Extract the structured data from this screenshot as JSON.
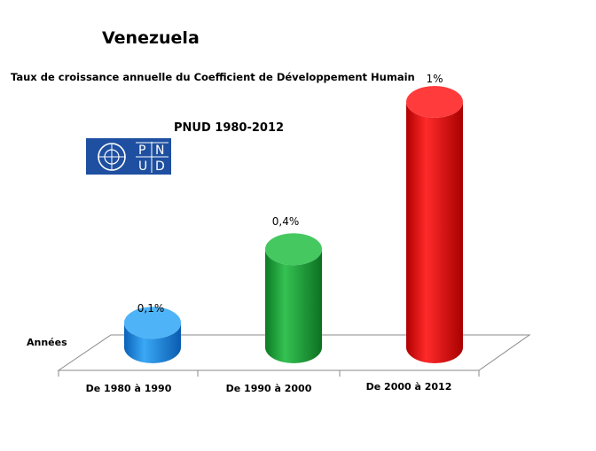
{
  "chart_data": {
    "type": "bar",
    "title": "Venezuela",
    "subtitle": "Taux de croissance annuelle du Coefficient de Développement Humain",
    "source_label": "PNUD 1980-2012",
    "xlabel": "Années",
    "ylabel": "",
    "categories": [
      "De 1980 à 1990",
      "De 1990 à 2000",
      "De 2000 à 2012"
    ],
    "values": [
      0.1,
      0.4,
      1.0
    ],
    "value_labels": [
      "0,1%",
      "0,4%",
      "1%"
    ],
    "unit": "%",
    "ylim": [
      0,
      1.0
    ],
    "grid": false,
    "legend": "none",
    "colors": [
      "#1f8fe0",
      "#1aa63a",
      "#e30d0d"
    ]
  },
  "logo": {
    "letters": [
      "P",
      "N",
      "U",
      "D"
    ],
    "color": "#1e4fa0"
  }
}
